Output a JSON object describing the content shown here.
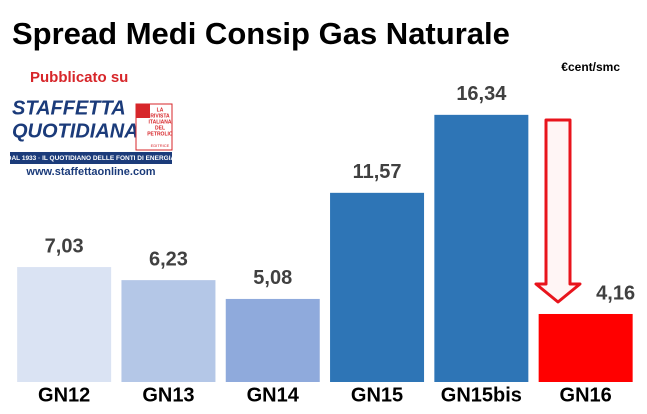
{
  "chart_data": {
    "type": "bar",
    "title": "Spread Medi Consip Gas Naturale",
    "unit_label": "€cent/smc",
    "categories": [
      "GN12",
      "GN13",
      "GN14",
      "GN15",
      "GN15bis",
      "GN16"
    ],
    "values": [
      7.03,
      6.23,
      5.08,
      11.57,
      16.34,
      4.16
    ],
    "value_labels": [
      "7,03",
      "6,23",
      "5,08",
      "11,57",
      "16,34",
      "4,16"
    ],
    "colors": [
      "#dae3f3",
      "#b4c7e7",
      "#8faadc",
      "#2e75b6",
      "#2e75b6",
      "#ff0000"
    ]
  },
  "logo": {
    "published": "Pubblicato su",
    "name_line1": "STAFFETTA",
    "name_line2": "QUOTIDIANA",
    "tagline": "DAL 1933 · IL QUOTIDIANO DELLE FONTI DI ENERGIA",
    "website": "www.staffettaonline.com",
    "badge_lines": [
      "LA",
      "RIVISTA",
      "ITALIANA",
      "DEL",
      "PETROLIO"
    ],
    "badge_footer": "EDITRICE"
  }
}
